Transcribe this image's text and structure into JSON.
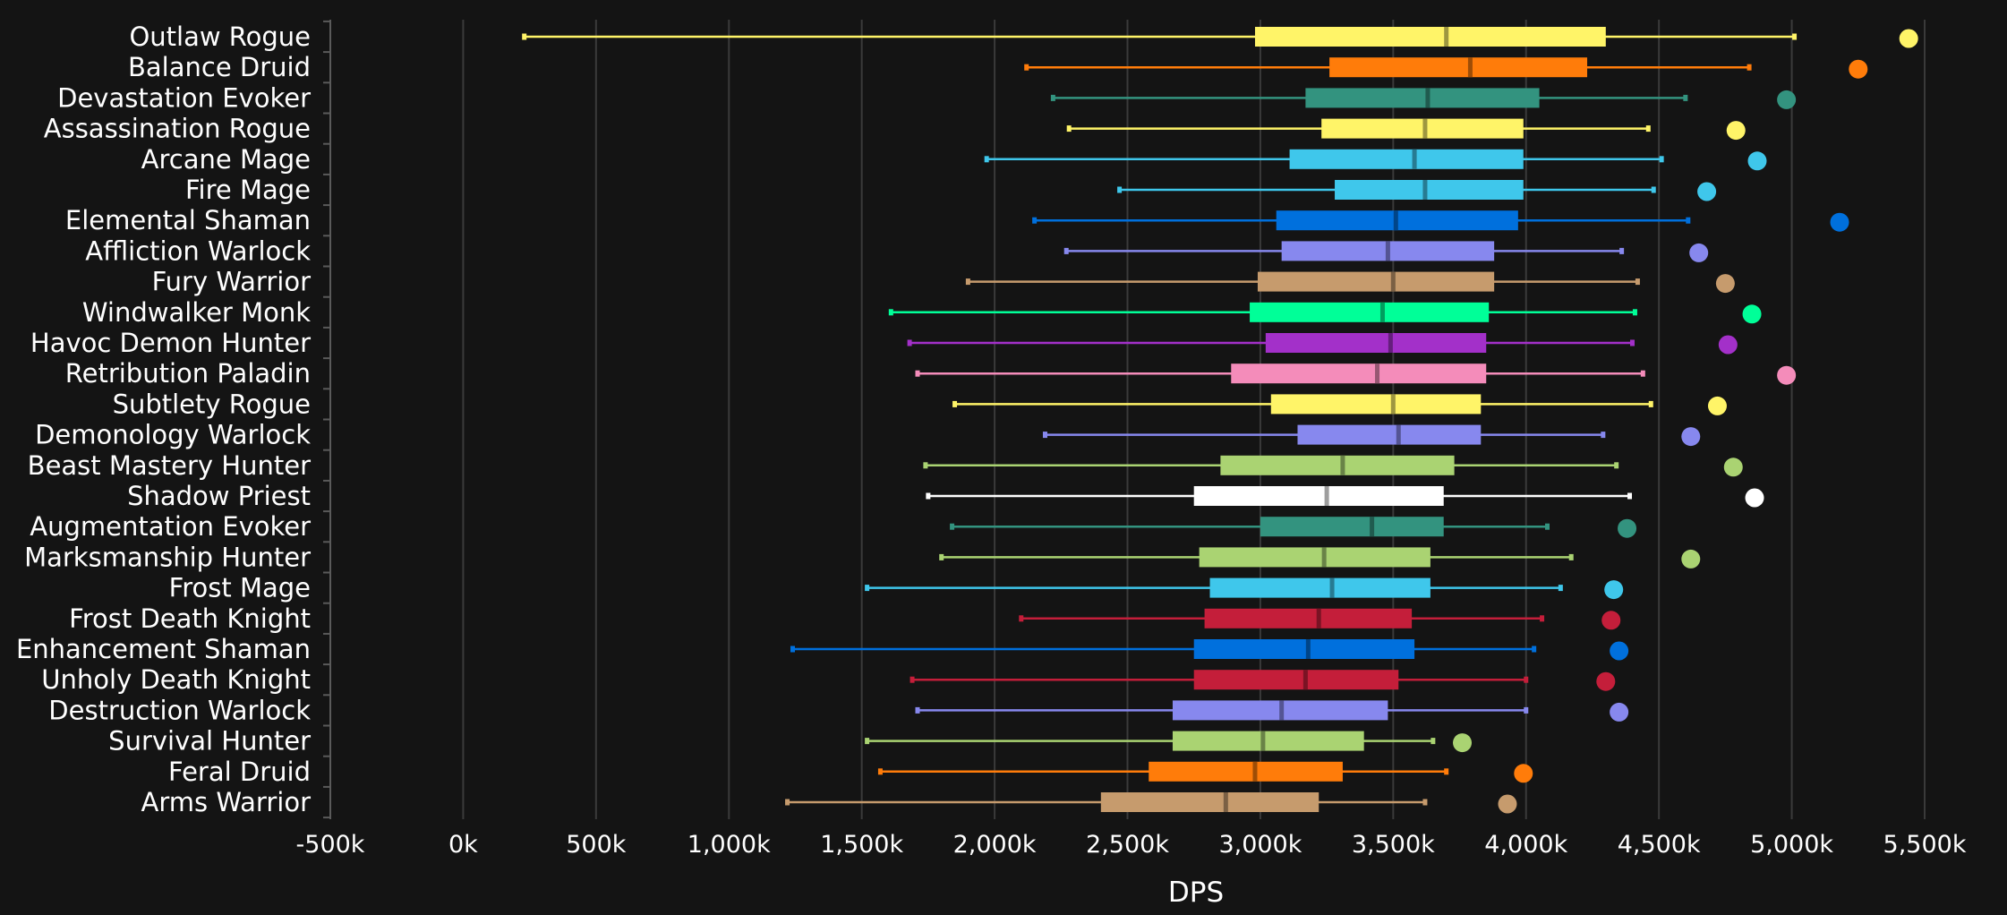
{
  "chart_data": {
    "type": "box",
    "xlabel": "DPS",
    "xlim": [
      -500000,
      5500000
    ],
    "x_ticks": [
      -500000,
      0,
      500000,
      1000000,
      1500000,
      2000000,
      2500000,
      3000000,
      3500000,
      4000000,
      4500000,
      5000000,
      5500000
    ],
    "x_tick_labels": [
      "-500k",
      "0k",
      "500k",
      "1,000k",
      "1,500k",
      "2,000k",
      "2,500k",
      "3,000k",
      "3,500k",
      "4,000k",
      "4,500k",
      "5,000k",
      "5,500k"
    ],
    "grid": true,
    "series": [
      {
        "name": "Outlaw Rogue",
        "color": "#FFF468",
        "min": 230000,
        "q1": 2980000,
        "median": 3700000,
        "q3": 4300000,
        "max": 5010000,
        "outlier": 5440000
      },
      {
        "name": "Balance Druid",
        "color": "#FF7C0A",
        "min": 2120000,
        "q1": 3260000,
        "median": 3790000,
        "q3": 4230000,
        "max": 4840000,
        "outlier": 5250000
      },
      {
        "name": "Devastation Evoker",
        "color": "#33937F",
        "min": 2220000,
        "q1": 3170000,
        "median": 3630000,
        "q3": 4050000,
        "max": 4600000,
        "outlier": 4980000
      },
      {
        "name": "Assassination Rogue",
        "color": "#FFF468",
        "min": 2280000,
        "q1": 3230000,
        "median": 3620000,
        "q3": 3990000,
        "max": 4460000,
        "outlier": 4790000
      },
      {
        "name": "Arcane Mage",
        "color": "#3FC7EB",
        "min": 1970000,
        "q1": 3110000,
        "median": 3580000,
        "q3": 3990000,
        "max": 4510000,
        "outlier": 4870000
      },
      {
        "name": "Fire Mage",
        "color": "#3FC7EB",
        "min": 2470000,
        "q1": 3280000,
        "median": 3620000,
        "q3": 3990000,
        "max": 4480000,
        "outlier": 4680000
      },
      {
        "name": "Elemental Shaman",
        "color": "#0070DD",
        "min": 2150000,
        "q1": 3060000,
        "median": 3510000,
        "q3": 3970000,
        "max": 4610000,
        "outlier": 5180000
      },
      {
        "name": "Affliction Warlock",
        "color": "#8788EE",
        "min": 2270000,
        "q1": 3080000,
        "median": 3480000,
        "q3": 3880000,
        "max": 4360000,
        "outlier": 4650000
      },
      {
        "name": "Fury Warrior",
        "color": "#C69B6D",
        "min": 1900000,
        "q1": 2990000,
        "median": 3500000,
        "q3": 3880000,
        "max": 4420000,
        "outlier": 4750000
      },
      {
        "name": "Windwalker Monk",
        "color": "#00FF98",
        "min": 1610000,
        "q1": 2960000,
        "median": 3460000,
        "q3": 3860000,
        "max": 4410000,
        "outlier": 4850000
      },
      {
        "name": "Havoc Demon Hunter",
        "color": "#A330C9",
        "min": 1680000,
        "q1": 3020000,
        "median": 3490000,
        "q3": 3850000,
        "max": 4400000,
        "outlier": 4760000
      },
      {
        "name": "Retribution Paladin",
        "color": "#F48CBA",
        "min": 1710000,
        "q1": 2890000,
        "median": 3440000,
        "q3": 3850000,
        "max": 4440000,
        "outlier": 4980000
      },
      {
        "name": "Subtlety Rogue",
        "color": "#FFF468",
        "min": 1850000,
        "q1": 3040000,
        "median": 3500000,
        "q3": 3830000,
        "max": 4470000,
        "outlier": 4720000
      },
      {
        "name": "Demonology Warlock",
        "color": "#8788EE",
        "min": 2190000,
        "q1": 3140000,
        "median": 3520000,
        "q3": 3830000,
        "max": 4290000,
        "outlier": 4620000
      },
      {
        "name": "Beast Mastery Hunter",
        "color": "#AAD372",
        "min": 1740000,
        "q1": 2850000,
        "median": 3310000,
        "q3": 3730000,
        "max": 4340000,
        "outlier": 4780000
      },
      {
        "name": "Shadow Priest",
        "color": "#FFFFFF",
        "min": 1750000,
        "q1": 2750000,
        "median": 3250000,
        "q3": 3690000,
        "max": 4390000,
        "outlier": 4860000
      },
      {
        "name": "Augmentation Evoker",
        "color": "#33937F",
        "min": 1840000,
        "q1": 3000000,
        "median": 3420000,
        "q3": 3690000,
        "max": 4080000,
        "outlier": 4380000
      },
      {
        "name": "Marksmanship Hunter",
        "color": "#AAD372",
        "min": 1800000,
        "q1": 2770000,
        "median": 3240000,
        "q3": 3640000,
        "max": 4170000,
        "outlier": 4620000
      },
      {
        "name": "Frost Mage",
        "color": "#3FC7EB",
        "min": 1520000,
        "q1": 2810000,
        "median": 3270000,
        "q3": 3640000,
        "max": 4130000,
        "outlier": 4330000
      },
      {
        "name": "Frost Death Knight",
        "color": "#C41E3A",
        "min": 2100000,
        "q1": 2790000,
        "median": 3220000,
        "q3": 3570000,
        "max": 4060000,
        "outlier": 4320000
      },
      {
        "name": "Enhancement Shaman",
        "color": "#0070DD",
        "min": 1240000,
        "q1": 2750000,
        "median": 3180000,
        "q3": 3580000,
        "max": 4030000,
        "outlier": 4350000
      },
      {
        "name": "Unholy Death Knight",
        "color": "#C41E3A",
        "min": 1690000,
        "q1": 2750000,
        "median": 3170000,
        "q3": 3520000,
        "max": 4000000,
        "outlier": 4300000
      },
      {
        "name": "Destruction Warlock",
        "color": "#8788EE",
        "min": 1710000,
        "q1": 2670000,
        "median": 3080000,
        "q3": 3480000,
        "max": 4000000,
        "outlier": 4350000
      },
      {
        "name": "Survival Hunter",
        "color": "#AAD372",
        "min": 1520000,
        "q1": 2670000,
        "median": 3010000,
        "q3": 3390000,
        "max": 3650000,
        "outlier": 3760000
      },
      {
        "name": "Feral Druid",
        "color": "#FF7C0A",
        "min": 1570000,
        "q1": 2580000,
        "median": 2980000,
        "q3": 3310000,
        "max": 3700000,
        "outlier": 3990000
      },
      {
        "name": "Arms Warrior",
        "color": "#C69B6D",
        "min": 1220000,
        "q1": 2400000,
        "median": 2870000,
        "q3": 3220000,
        "max": 3620000,
        "outlier": 3930000
      }
    ]
  }
}
